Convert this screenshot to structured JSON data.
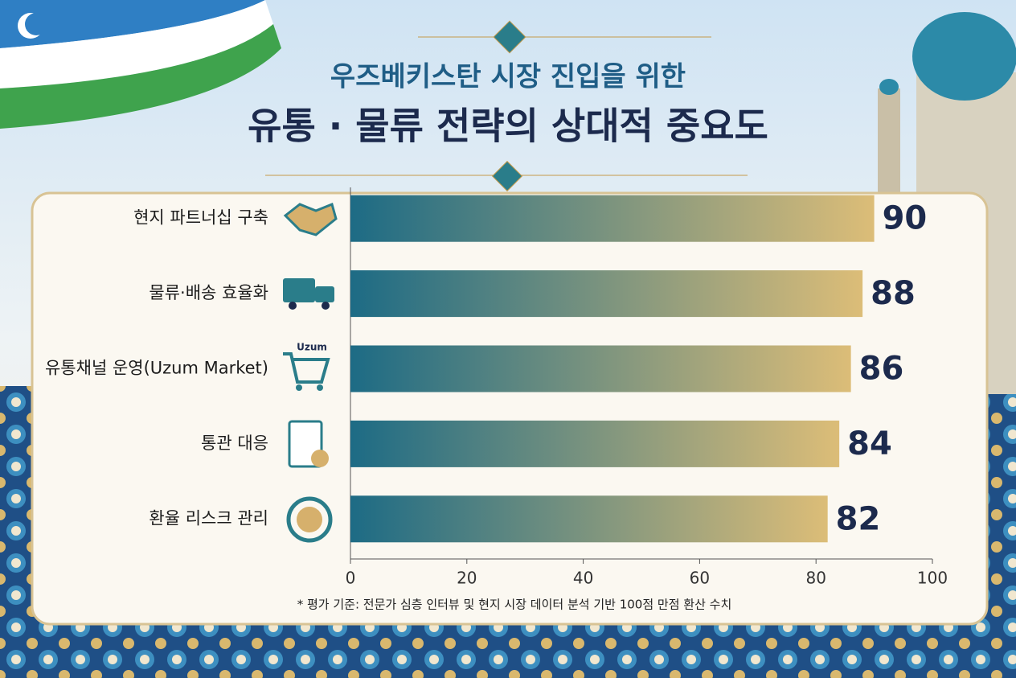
{
  "chart_data": {
    "type": "hbar",
    "title": "우즈베키스탄 시장 진입을 위한",
    "subtitle": "유통 · 물류 전략의 상대적 중요도",
    "categories": [
      "현지 파트너십 구축",
      "물류·배송 효율화",
      "유통채널 운영(Uzum Market)",
      "통관 대응",
      "환율 리스크 관리"
    ],
    "values": [
      90,
      88,
      86,
      84,
      82
    ],
    "colors": [
      "#1d6b85",
      "#dcbd78"
    ],
    "xlim": [
      0,
      100
    ],
    "xticks": [
      0,
      20,
      40,
      60,
      80,
      100
    ],
    "grid": false,
    "icon_text": "Uzum",
    "footnote": "* 평가 기준: 전문가 심층 인터뷰 및 현지 시장 데이터 분석 기반 100점 만점 환산 수치"
  }
}
